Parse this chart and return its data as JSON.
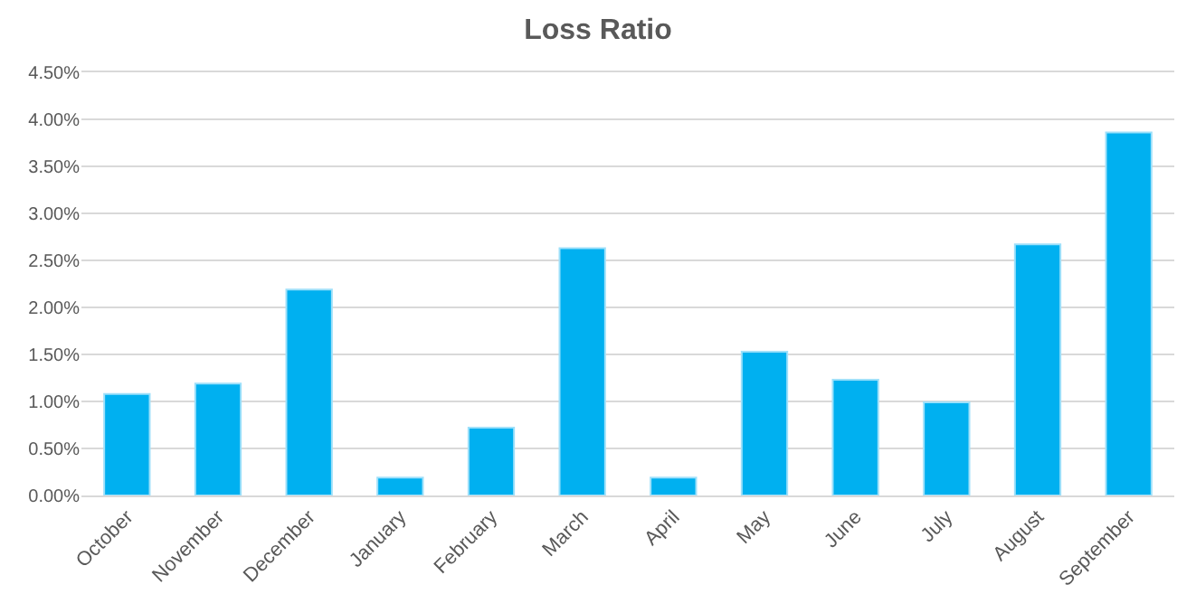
{
  "chart_data": {
    "type": "bar",
    "title": "Loss Ratio",
    "categories": [
      "October",
      "November",
      "December",
      "January",
      "February",
      "March",
      "April",
      "May",
      "June",
      "July",
      "August",
      "September"
    ],
    "values": [
      1.08,
      1.19,
      2.19,
      0.19,
      0.72,
      2.63,
      0.19,
      1.53,
      1.23,
      0.99,
      2.67,
      3.86
    ],
    "color": "#00b0f0",
    "ylim": [
      0,
      4.5
    ],
    "yticks": [
      {
        "value": 0,
        "label": "0.00%"
      },
      {
        "value": 0.5,
        "label": "0.50%"
      },
      {
        "value": 1,
        "label": "1.00%"
      },
      {
        "value": 1.5,
        "label": "1.50%"
      },
      {
        "value": 2,
        "label": "2.00%"
      },
      {
        "value": 2.5,
        "label": "2.50%"
      },
      {
        "value": 3,
        "label": "3.00%"
      },
      {
        "value": 3.5,
        "label": "3.50%"
      },
      {
        "value": 4,
        "label": "4.00%"
      },
      {
        "value": 4.5,
        "label": "4.50%"
      }
    ],
    "grid": "y"
  }
}
